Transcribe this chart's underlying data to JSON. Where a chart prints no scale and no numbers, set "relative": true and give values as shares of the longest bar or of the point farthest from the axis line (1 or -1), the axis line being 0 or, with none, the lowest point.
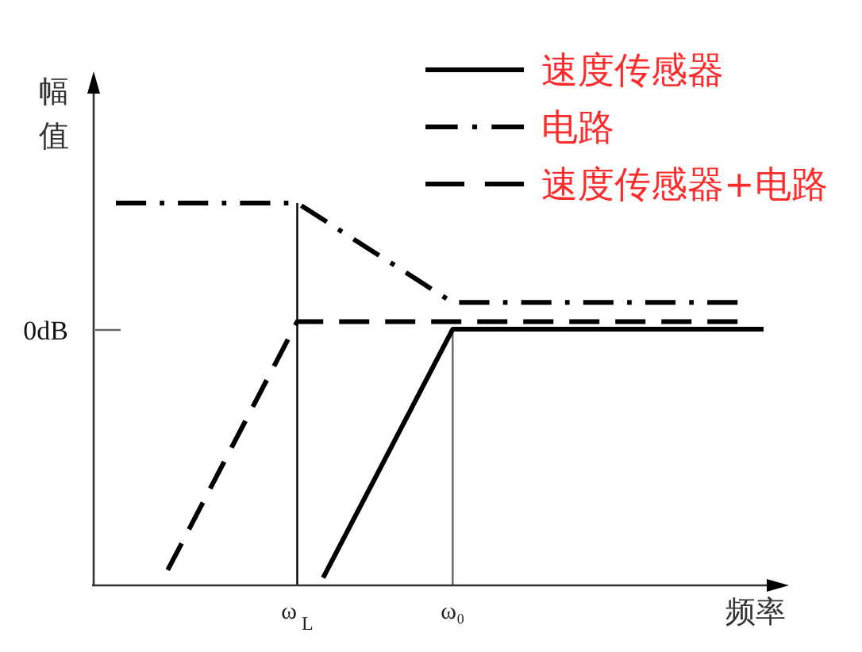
{
  "chart_data": {
    "type": "line",
    "xlabel": "频率",
    "ylabel": "幅值",
    "categories": [
      null,
      null,
      null,
      null,
      null,
      null,
      null,
      "ω$_{L}$",
      null,
      null,
      null,
      null,
      null,
      "ω₀",
      null,
      null,
      null,
      null,
      null,
      null,
      null,
      null,
      null,
      null,
      null,
      null
    ],
    "relative": true,
    "series": [
      {
        "name": "速度传感器",
        "color": "#000000",
        "line_style": "solid",
        "values": [
          null,
          null,
          null,
          null,
          null,
          null,
          null,
          null,
          0.02,
          0.15,
          0.28,
          0.41,
          0.54,
          0.67,
          0.67,
          0.67,
          0.67,
          0.67,
          0.67,
          0.67,
          0.67,
          0.67,
          0.67,
          0.67,
          0.67,
          0.67
        ]
      },
      {
        "name": "电路",
        "color": "#000000",
        "line_style": "dashdot",
        "values": [
          1,
          1,
          1,
          1,
          1,
          1,
          1,
          1,
          0.957,
          0.913,
          0.87,
          0.827,
          0.783,
          0.74,
          0.74,
          0.74,
          0.74,
          0.74,
          0.74,
          0.74,
          0.74,
          0.74,
          0.74,
          0.74,
          0.74,
          null
        ]
      },
      {
        "name": "速度传感器+电路",
        "color": "#000000",
        "line_style": "dashed",
        "values": [
          null,
          null,
          0.04,
          0.17,
          0.3,
          0.43,
          0.56,
          0.69,
          0.69,
          0.69,
          0.69,
          0.69,
          0.69,
          0.69,
          0.69,
          0.69,
          0.69,
          0.69,
          0.69,
          0.69,
          0.69,
          0.69,
          0.69,
          0.69,
          0.69,
          null
        ]
      }
    ],
    "annotations": [
      "0dB"
    ],
    "ref_lines": [
      {
        "axis": "x",
        "value": "ω$_{L}$",
        "color": "#000000"
      },
      {
        "axis": "x",
        "value": "ω₀",
        "color": "#666666"
      }
    ],
    "legend": "top right"
  }
}
